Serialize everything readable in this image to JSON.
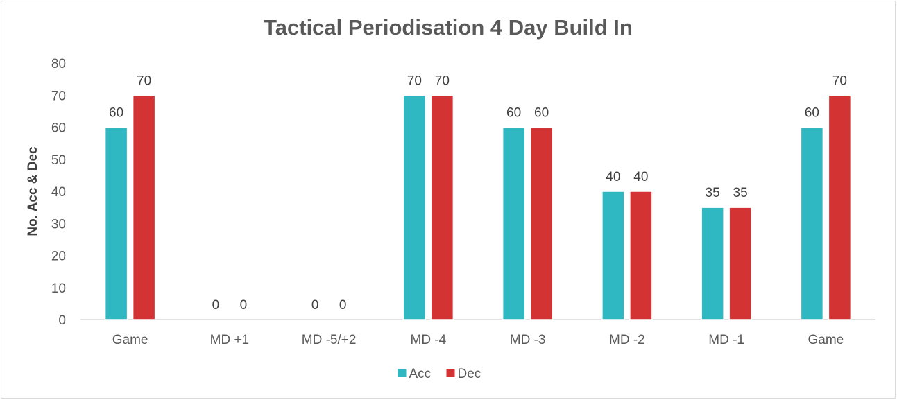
{
  "chart_data": {
    "type": "bar",
    "title": "Tactical Periodisation 4 Day Build In",
    "xlabel": "",
    "ylabel": "No. Acc & Dec",
    "categories": [
      "Game",
      "MD +1",
      "MD -5/+2",
      "MD -4",
      "MD -3",
      "MD -2",
      "MD -1",
      "Game"
    ],
    "series": [
      {
        "name": "Acc",
        "color": "#2fb8c1",
        "values": [
          60,
          0,
          0,
          70,
          60,
          40,
          35,
          60
        ]
      },
      {
        "name": "Dec",
        "color": "#d33333",
        "values": [
          70,
          0,
          0,
          70,
          60,
          40,
          35,
          70
        ]
      }
    ],
    "ylim": [
      0,
      80
    ],
    "yticks": [
      0,
      10,
      20,
      30,
      40,
      50,
      60,
      70,
      80
    ],
    "grid": false,
    "legend": "bottom-center",
    "data_labels": true
  }
}
